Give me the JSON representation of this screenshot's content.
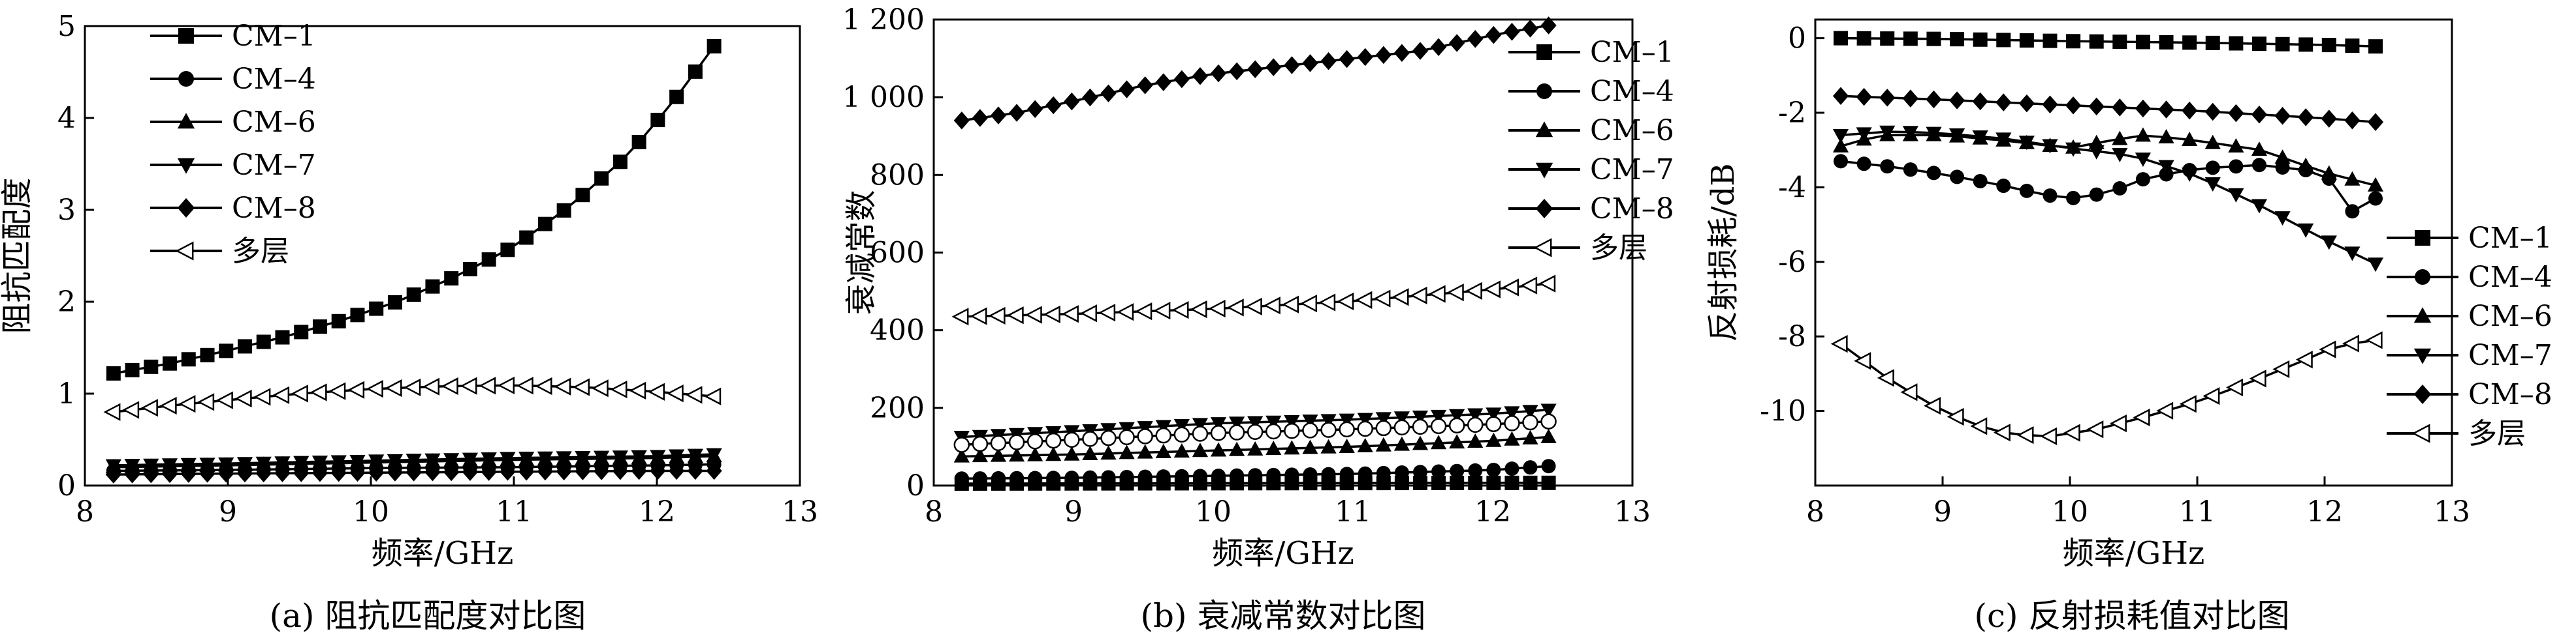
{
  "chart_data": [
    {
      "type": "line",
      "caption": "(a) 阻抗匹配度对比图",
      "xlabel": "频率/GHz",
      "ylabel": "阻抗匹配度",
      "xlim": [
        8,
        13
      ],
      "ylim": [
        0,
        5
      ],
      "xticks": [
        8,
        9,
        10,
        11,
        12,
        13
      ],
      "yticks": [
        0,
        1,
        2,
        3,
        4,
        5
      ],
      "x_range": [
        8.2,
        12.4
      ],
      "num_points": 33,
      "legend_position": "top-left",
      "grid": false,
      "series": [
        {
          "name": "CM–1",
          "marker": "square",
          "points": [
            [
              8.2,
              1.22
            ],
            [
              8.6,
              1.33
            ],
            [
              9.0,
              1.47
            ],
            [
              9.4,
              1.62
            ],
            [
              9.8,
              1.8
            ],
            [
              10.2,
              2.01
            ],
            [
              10.6,
              2.28
            ],
            [
              11.0,
              2.6
            ],
            [
              11.4,
              3.05
            ],
            [
              11.8,
              3.6
            ],
            [
              12.1,
              4.15
            ],
            [
              12.4,
              4.78
            ]
          ]
        },
        {
          "name": "CM–4",
          "marker": "circle",
          "points": [
            [
              8.2,
              0.16
            ],
            [
              9.0,
              0.17
            ],
            [
              10.0,
              0.19
            ],
            [
              11.0,
              0.2
            ],
            [
              12.0,
              0.22
            ],
            [
              12.4,
              0.23
            ]
          ]
        },
        {
          "name": "CM–6",
          "marker": "triangle-up",
          "points": [
            [
              8.2,
              0.2
            ],
            [
              9.0,
              0.22
            ],
            [
              10.0,
              0.25
            ],
            [
              11.0,
              0.28
            ],
            [
              12.0,
              0.3
            ],
            [
              12.4,
              0.32
            ]
          ]
        },
        {
          "name": "CM–7",
          "marker": "triangle-down",
          "points": [
            [
              8.2,
              0.22
            ],
            [
              9.0,
              0.24
            ],
            [
              10.0,
              0.27
            ],
            [
              11.0,
              0.3
            ],
            [
              12.0,
              0.32
            ],
            [
              12.4,
              0.34
            ]
          ]
        },
        {
          "name": "CM–8",
          "marker": "diamond",
          "points": [
            [
              8.2,
              0.12
            ],
            [
              9.0,
              0.13
            ],
            [
              10.0,
              0.14
            ],
            [
              11.0,
              0.15
            ],
            [
              12.0,
              0.16
            ],
            [
              12.4,
              0.16
            ]
          ]
        },
        {
          "name": "多层",
          "marker": "triangle-left-open",
          "points": [
            [
              8.2,
              0.8
            ],
            [
              8.6,
              0.87
            ],
            [
              9.0,
              0.93
            ],
            [
              9.5,
              1.0
            ],
            [
              10.0,
              1.05
            ],
            [
              10.5,
              1.08
            ],
            [
              11.0,
              1.09
            ],
            [
              11.5,
              1.07
            ],
            [
              12.0,
              1.02
            ],
            [
              12.4,
              0.97
            ]
          ]
        }
      ]
    },
    {
      "type": "line",
      "caption": "(b) 衰减常数对比图",
      "xlabel": "频率/GHz",
      "ylabel": "衰减常数",
      "xlim": [
        8,
        13
      ],
      "ylim": [
        0,
        1200
      ],
      "xticks": [
        8,
        9,
        10,
        11,
        12,
        13
      ],
      "yticks": [
        0,
        200,
        400,
        600,
        800,
        1000,
        1200
      ],
      "ytick_labels": [
        "0",
        "200",
        "400",
        "600",
        "800",
        "1 000",
        "1 200"
      ],
      "x_range": [
        8.2,
        12.4
      ],
      "num_points": 33,
      "legend_position": "top-right",
      "grid": false,
      "series": [
        {
          "name": "CM–1",
          "marker": "square",
          "points": [
            [
              8.2,
              5
            ],
            [
              10.0,
              6
            ],
            [
              12.4,
              7
            ]
          ]
        },
        {
          "name": "CM–4",
          "marker": "circle",
          "points": [
            [
              8.2,
              18
            ],
            [
              9.0,
              20
            ],
            [
              10.0,
              25
            ],
            [
              11.0,
              30
            ],
            [
              12.0,
              40
            ],
            [
              12.4,
              50
            ]
          ]
        },
        {
          "name": "CM–6",
          "marker": "triangle-up",
          "points": [
            [
              8.2,
              75
            ],
            [
              9.0,
              80
            ],
            [
              10.0,
              90
            ],
            [
              11.0,
              100
            ],
            [
              12.0,
              115
            ],
            [
              12.4,
              125
            ]
          ]
        },
        {
          "name": "CM–7",
          "marker": "triangle-down",
          "points": [
            [
              8.2,
              125
            ],
            [
              9.0,
              140
            ],
            [
              10.0,
              160
            ],
            [
              11.0,
              170
            ],
            [
              12.0,
              185
            ],
            [
              12.4,
              195
            ]
          ]
        },
        {
          "name": "CM–8",
          "marker": "diamond",
          "points": [
            [
              8.2,
              940
            ],
            [
              8.6,
              960
            ],
            [
              9.0,
              990
            ],
            [
              9.5,
              1030
            ],
            [
              10.0,
              1060
            ],
            [
              10.5,
              1080
            ],
            [
              11.0,
              1100
            ],
            [
              11.5,
              1120
            ],
            [
              12.0,
              1160
            ],
            [
              12.4,
              1185
            ]
          ]
        },
        {
          "name": "多层",
          "marker": "triangle-left-open",
          "points": [
            [
              8.2,
              435
            ],
            [
              9.0,
              442
            ],
            [
              10.0,
              455
            ],
            [
              11.0,
              475
            ],
            [
              12.0,
              505
            ],
            [
              12.4,
              520
            ]
          ]
        },
        {
          "name": "",
          "marker": "circle-open",
          "points": [
            [
              8.2,
              105
            ],
            [
              9.0,
              118
            ],
            [
              10.0,
              135
            ],
            [
              11.0,
              145
            ],
            [
              12.0,
              158
            ],
            [
              12.4,
              165
            ]
          ]
        }
      ]
    },
    {
      "type": "line",
      "caption": "(c) 反射损耗值对比图",
      "xlabel": "频率/GHz",
      "ylabel": "反射损耗/dB",
      "xlim": [
        8,
        13
      ],
      "ylim": [
        -12,
        0.5
      ],
      "xticks": [
        8,
        9,
        10,
        11,
        12,
        13
      ],
      "yticks": [
        0,
        -2,
        -4,
        -6,
        -8,
        -10
      ],
      "x_range": [
        8.2,
        12.4
      ],
      "num_points": 24,
      "legend_position": "right",
      "grid": false,
      "series": [
        {
          "name": "CM–1",
          "marker": "square",
          "points": [
            [
              8.2,
              0.0
            ],
            [
              9.0,
              -0.02
            ],
            [
              10.0,
              -0.08
            ],
            [
              11.0,
              -0.12
            ],
            [
              12.0,
              -0.18
            ],
            [
              12.4,
              -0.22
            ]
          ]
        },
        {
          "name": "CM–4",
          "marker": "circle",
          "points": [
            [
              8.2,
              -3.3
            ],
            [
              8.6,
              -3.45
            ],
            [
              9.0,
              -3.65
            ],
            [
              9.4,
              -3.9
            ],
            [
              9.8,
              -4.2
            ],
            [
              10.0,
              -4.3
            ],
            [
              10.3,
              -4.15
            ],
            [
              10.6,
              -3.75
            ],
            [
              11.0,
              -3.5
            ],
            [
              11.5,
              -3.4
            ],
            [
              12.0,
              -3.6
            ],
            [
              12.25,
              -4.8
            ],
            [
              12.4,
              -4.3
            ]
          ]
        },
        {
          "name": "CM–6",
          "marker": "triangle-up",
          "points": [
            [
              8.2,
              -2.9
            ],
            [
              8.5,
              -2.6
            ],
            [
              9.0,
              -2.6
            ],
            [
              9.5,
              -2.75
            ],
            [
              10.0,
              -2.95
            ],
            [
              10.3,
              -2.75
            ],
            [
              10.6,
              -2.6
            ],
            [
              11.0,
              -2.75
            ],
            [
              11.5,
              -3.0
            ],
            [
              12.0,
              -3.6
            ],
            [
              12.4,
              -3.95
            ]
          ]
        },
        {
          "name": "CM–7",
          "marker": "triangle-down",
          "points": [
            [
              8.2,
              -2.6
            ],
            [
              8.6,
              -2.5
            ],
            [
              9.0,
              -2.55
            ],
            [
              9.5,
              -2.7
            ],
            [
              10.0,
              -2.95
            ],
            [
              10.5,
              -3.15
            ],
            [
              11.0,
              -3.7
            ],
            [
              11.5,
              -4.5
            ],
            [
              12.0,
              -5.4
            ],
            [
              12.4,
              -6.05
            ]
          ]
        },
        {
          "name": "CM–8",
          "marker": "diamond",
          "points": [
            [
              8.2,
              -1.55
            ],
            [
              9.0,
              -1.65
            ],
            [
              10.0,
              -1.8
            ],
            [
              11.0,
              -1.95
            ],
            [
              12.0,
              -2.15
            ],
            [
              12.4,
              -2.25
            ]
          ]
        },
        {
          "name": "多层",
          "marker": "triangle-left-open",
          "points": [
            [
              8.2,
              -8.2
            ],
            [
              8.6,
              -9.2
            ],
            [
              9.0,
              -10.0
            ],
            [
              9.4,
              -10.55
            ],
            [
              9.8,
              -10.7
            ],
            [
              10.2,
              -10.5
            ],
            [
              10.6,
              -10.15
            ],
            [
              11.0,
              -9.75
            ],
            [
              11.4,
              -9.25
            ],
            [
              11.8,
              -8.7
            ],
            [
              12.1,
              -8.25
            ],
            [
              12.4,
              -8.1
            ]
          ]
        }
      ]
    }
  ]
}
